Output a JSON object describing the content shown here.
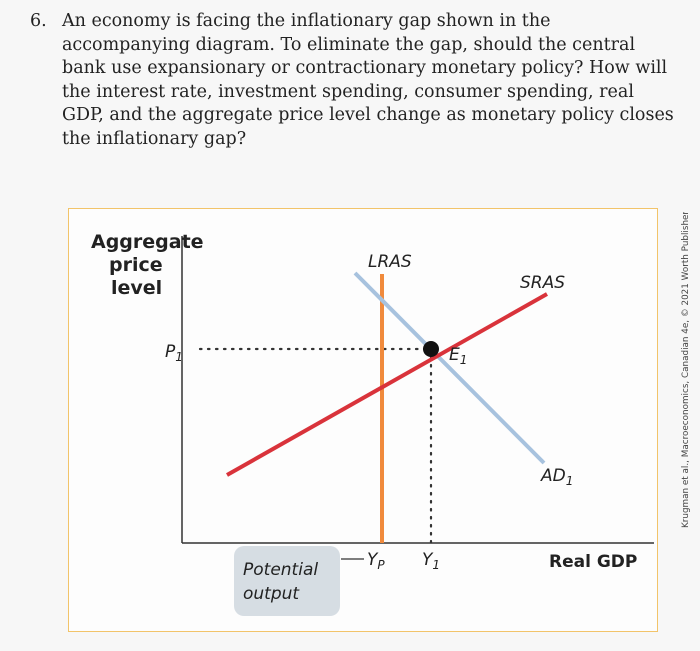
{
  "question": {
    "number": "6.",
    "text": "An economy is facing the inflationary gap shown in the accompanying diagram. To eliminate the gap, should the central bank use expansionary or contractionary monetary policy? How will the interest rate, investment spending, consumer spending, real GDP, and the aggregate price level change as monetary policy closes the inflationary gap?"
  },
  "diagram": {
    "y_axis_title": [
      "Aggregate",
      "price",
      "level"
    ],
    "x_axis_title": "Real GDP",
    "price_label": {
      "base": "P",
      "sub": "1"
    },
    "equilibrium_label": {
      "base": "E",
      "sub": "1"
    },
    "lras_label": "LRAS",
    "sras_label": "SRAS",
    "ad_label": {
      "base": "AD",
      "sub": "1"
    },
    "yp_label": {
      "base": "Y",
      "sub": "P"
    },
    "y1_label": {
      "base": "Y",
      "sub": "1"
    },
    "callout_lines": [
      "Potential",
      "output"
    ],
    "colors": {
      "lras": "#f08a3c",
      "sras": "#d9333b",
      "ad": "#a7c2de",
      "callout_bg": "#d6dde3",
      "frame": "#f2c46a",
      "point": "#111111"
    }
  },
  "credit": "Krugman et al., Macroeconomics, Canadian 4e, © 2021 Worth Publishers"
}
